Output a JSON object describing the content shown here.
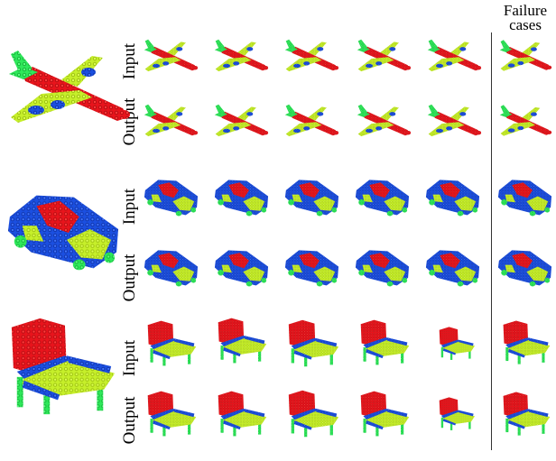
{
  "header": {
    "failure_line1": "Failure",
    "failure_line2": "cases"
  },
  "rows": [
    {
      "object": "airplane",
      "input_label": "Input",
      "output_label": "Output"
    },
    {
      "object": "car",
      "input_label": "Input",
      "output_label": "Output"
    },
    {
      "object": "chair",
      "input_label": "Input",
      "output_label": "Output"
    }
  ],
  "colors": {
    "red": "#e8141c",
    "green": "#2ee85a",
    "blue": "#1b4fe0",
    "yellow": "#c6ef2a",
    "divider": "#333333"
  },
  "icons": [
    "airplane-point-cloud-icon",
    "car-point-cloud-icon",
    "chair-point-cloud-icon"
  ]
}
